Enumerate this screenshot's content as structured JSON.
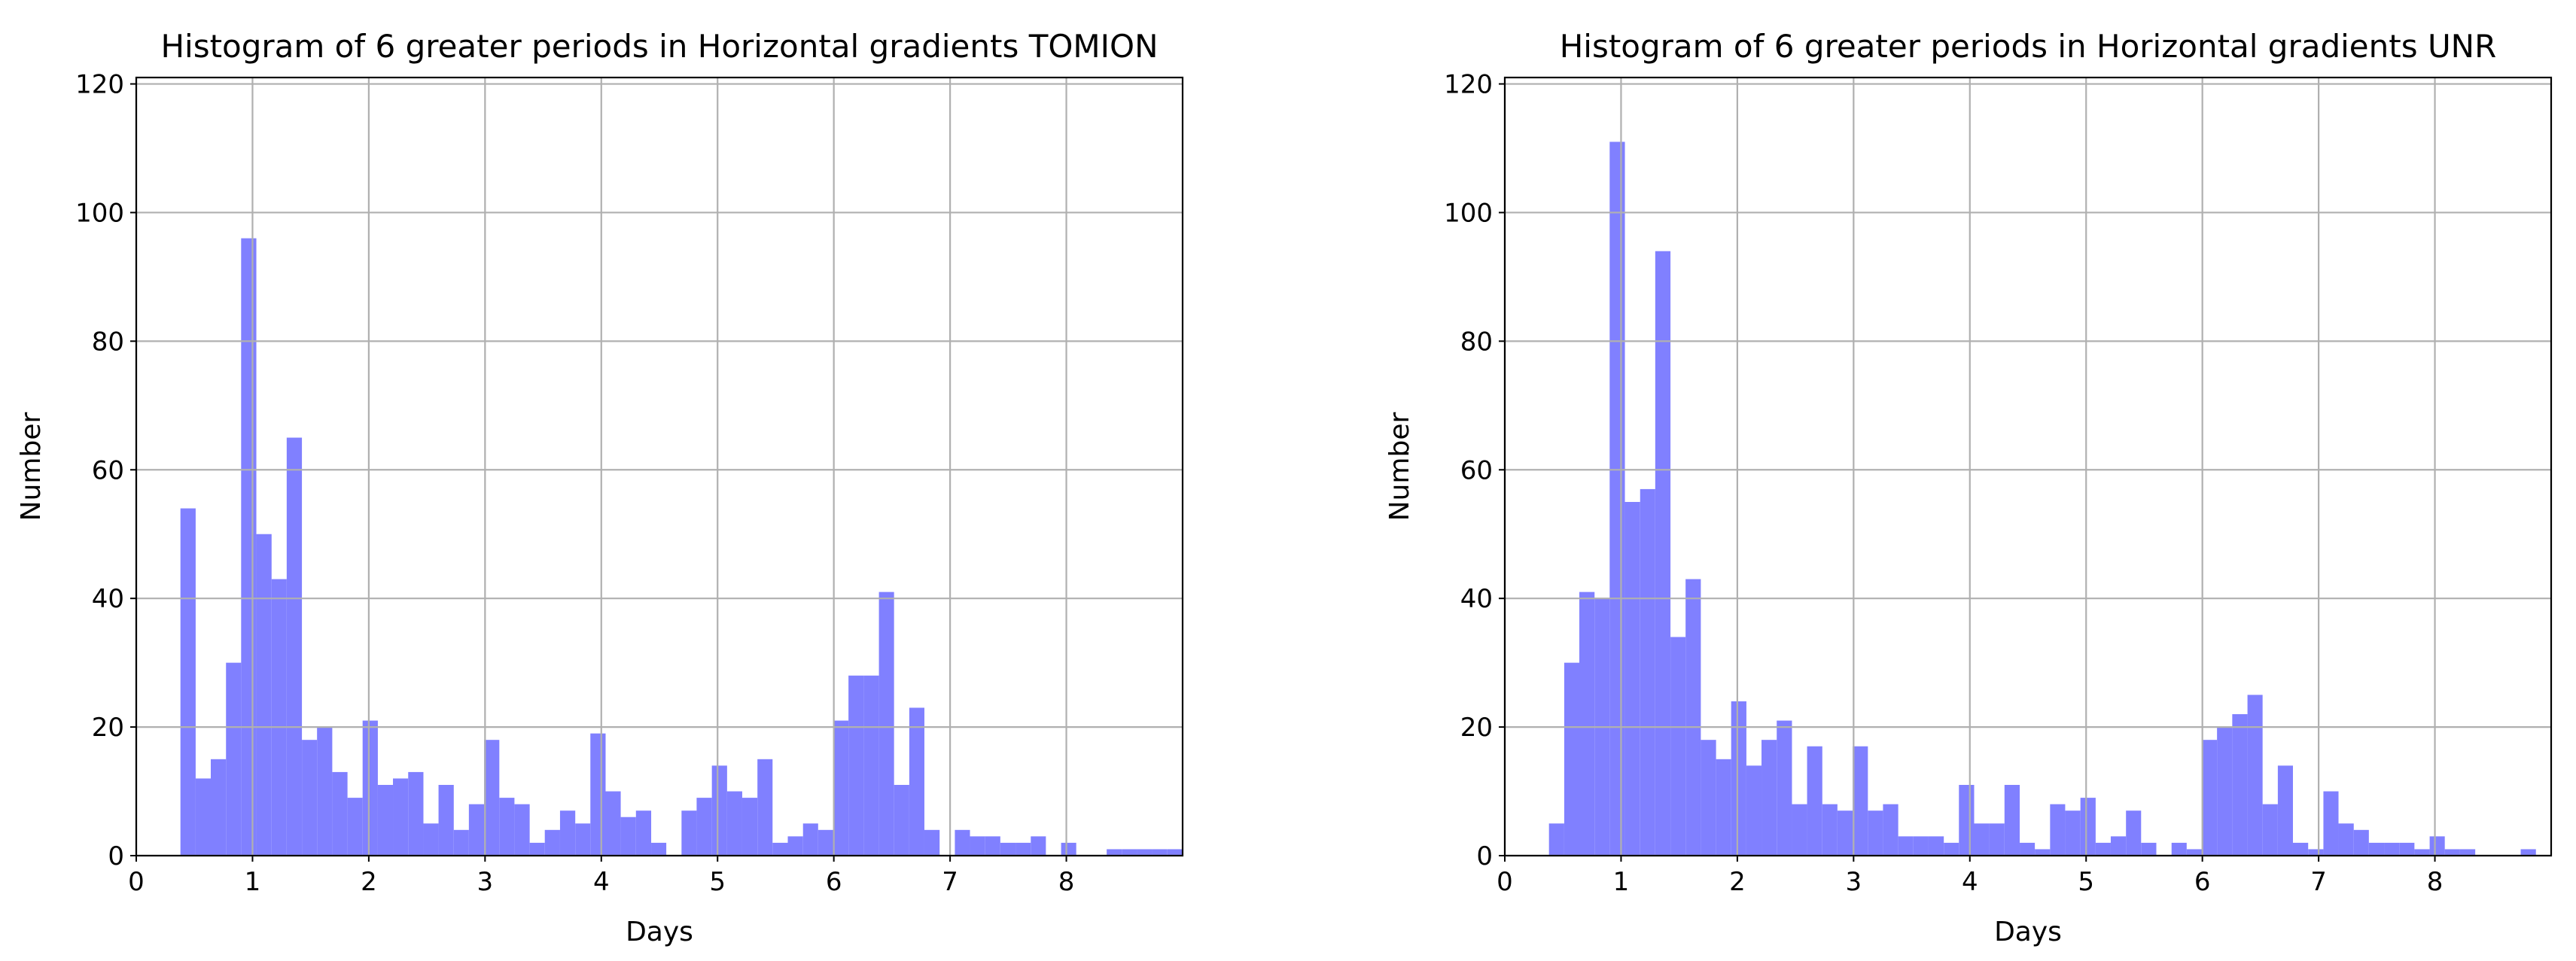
{
  "chart_data": [
    {
      "type": "histogram",
      "title": "Histogram of 6 greater periods in Horizontal gradients TOMION",
      "xlabel": "Days",
      "ylabel": "Number",
      "color": "#8080ff",
      "grid": true,
      "xlim": [
        0,
        9.0
      ],
      "ylim": [
        0,
        121
      ],
      "xticks": [
        0,
        1,
        2,
        3,
        4,
        5,
        6,
        7,
        8
      ],
      "yticks": [
        0,
        20,
        40,
        60,
        80,
        100,
        120
      ],
      "bins": [
        0.38,
        0.511,
        0.641,
        0.772,
        0.902,
        1.033,
        1.164,
        1.294,
        1.425,
        1.555,
        1.686,
        1.817,
        1.947,
        2.078,
        2.208,
        2.339,
        2.47,
        2.6,
        2.731,
        2.861,
        2.992,
        3.123,
        3.253,
        3.384,
        3.514,
        3.645,
        3.776,
        3.906,
        4.037,
        4.167,
        4.298,
        4.429,
        4.559,
        4.69,
        4.82,
        4.951,
        5.082,
        5.212,
        5.343,
        5.473,
        5.604,
        5.735,
        5.865,
        5.996,
        6.126,
        6.257,
        6.388,
        6.518,
        6.649,
        6.779,
        6.91,
        7.041,
        7.171,
        7.302,
        7.432,
        7.563,
        7.694,
        7.824,
        7.955,
        8.085,
        8.216,
        8.347,
        8.477,
        8.608,
        8.738,
        8.869,
        9.0
      ],
      "values": [
        54,
        12,
        15,
        30,
        96,
        50,
        43,
        65,
        18,
        20,
        13,
        9,
        21,
        11,
        12,
        13,
        5,
        11,
        4,
        8,
        18,
        9,
        8,
        2,
        4,
        7,
        5,
        19,
        10,
        6,
        7,
        2,
        0,
        7,
        9,
        14,
        10,
        9,
        15,
        2,
        3,
        5,
        4,
        21,
        28,
        28,
        41,
        11,
        23,
        4,
        0,
        4,
        3,
        3,
        2,
        2,
        3,
        0,
        2,
        0,
        0,
        1,
        1,
        1,
        1,
        1
      ]
    },
    {
      "type": "histogram",
      "title": "Histogram of 6 greater periods in Horizontal gradients UNR",
      "xlabel": "Days",
      "ylabel": "Number",
      "color": "#8080ff",
      "grid": true,
      "xlim": [
        0,
        9.0
      ],
      "ylim": [
        0,
        121
      ],
      "xticks": [
        0,
        1,
        2,
        3,
        4,
        5,
        6,
        7,
        8
      ],
      "yticks": [
        0,
        20,
        40,
        60,
        80,
        100,
        120
      ],
      "bins": [
        0.38,
        0.511,
        0.641,
        0.772,
        0.902,
        1.033,
        1.164,
        1.294,
        1.425,
        1.555,
        1.686,
        1.817,
        1.947,
        2.078,
        2.208,
        2.339,
        2.47,
        2.6,
        2.731,
        2.861,
        2.992,
        3.123,
        3.253,
        3.384,
        3.514,
        3.645,
        3.776,
        3.906,
        4.037,
        4.167,
        4.298,
        4.429,
        4.559,
        4.69,
        4.82,
        4.951,
        5.082,
        5.212,
        5.343,
        5.473,
        5.604,
        5.735,
        5.865,
        5.996,
        6.126,
        6.257,
        6.388,
        6.518,
        6.649,
        6.779,
        6.91,
        7.041,
        7.171,
        7.302,
        7.432,
        7.563,
        7.694,
        7.824,
        7.955,
        8.085,
        8.216,
        8.347,
        8.477,
        8.608,
        8.738,
        8.869,
        9.0
      ],
      "values": [
        5,
        30,
        41,
        40,
        111,
        55,
        57,
        94,
        34,
        43,
        18,
        15,
        24,
        14,
        18,
        21,
        8,
        17,
        8,
        7,
        17,
        7,
        8,
        3,
        3,
        3,
        2,
        11,
        5,
        5,
        11,
        2,
        1,
        8,
        7,
        9,
        2,
        3,
        7,
        2,
        0,
        2,
        1,
        18,
        20,
        22,
        25,
        8,
        14,
        2,
        1,
        10,
        5,
        4,
        2,
        2,
        2,
        1,
        3,
        1,
        1,
        0,
        0,
        0,
        1,
        0
      ]
    }
  ]
}
